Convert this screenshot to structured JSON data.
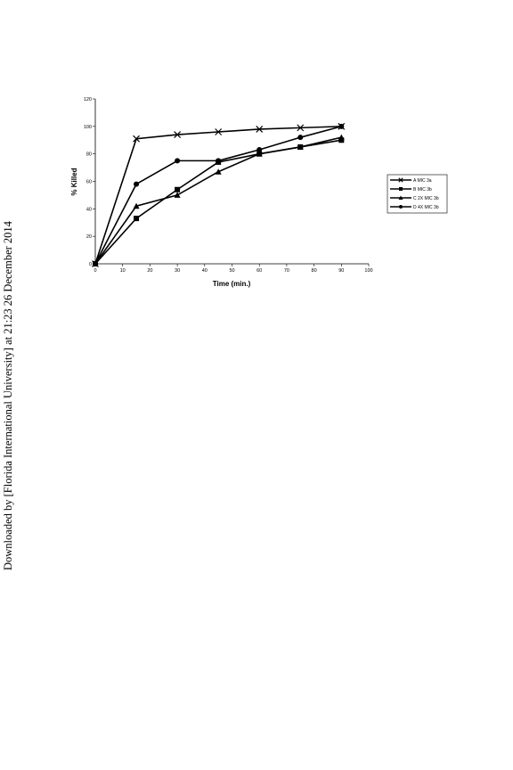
{
  "side_text": "Downloaded by [Florida International University] at 21:23 26 December 2014",
  "chart_data": {
    "type": "line",
    "title": "",
    "xlabel": "Time (min.)",
    "ylabel": "% Killed",
    "xlim": [
      0,
      100
    ],
    "ylim": [
      0,
      120
    ],
    "xticks": [
      0,
      10,
      20,
      30,
      40,
      50,
      60,
      70,
      80,
      90,
      100
    ],
    "yticks": [
      0,
      20,
      40,
      60,
      80,
      100,
      120
    ],
    "x": [
      0,
      15,
      30,
      45,
      60,
      75,
      90
    ],
    "grid": false,
    "legend_position": "right",
    "series": [
      {
        "name": "A MIC 3a",
        "marker": "x",
        "values": [
          0,
          91,
          94,
          96,
          98,
          99,
          100
        ]
      },
      {
        "name": "B MIC 3b",
        "marker": "square",
        "values": [
          0,
          33,
          54,
          74,
          80,
          85,
          90
        ]
      },
      {
        "name": "C 2X MIC 3b",
        "marker": "triangle",
        "values": [
          0,
          42,
          50,
          67,
          80,
          85,
          92
        ]
      },
      {
        "name": "D 4X MIC 3b",
        "marker": "circle",
        "values": [
          0,
          58,
          75,
          75,
          83,
          92,
          100
        ]
      }
    ]
  }
}
